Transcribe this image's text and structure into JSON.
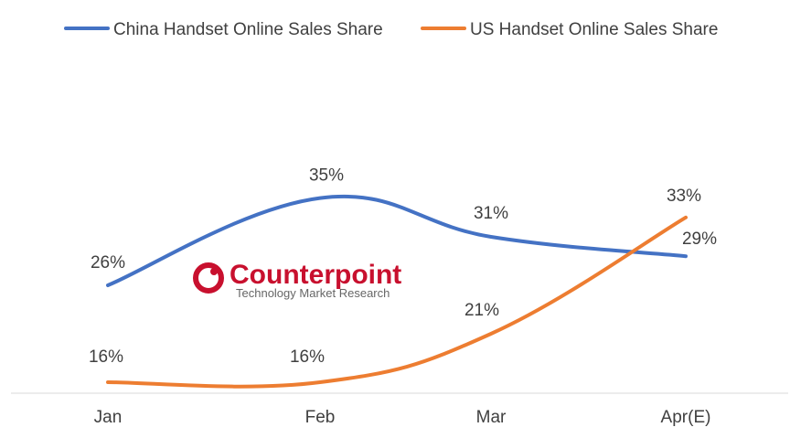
{
  "chart_data": {
    "type": "line",
    "categories": [
      "Jan",
      "Feb",
      "Mar",
      "Apr(E)"
    ],
    "series": [
      {
        "name": "China Handset Online Sales Share",
        "values": [
          26,
          35,
          31,
          29
        ],
        "labels": [
          "26%",
          "35%",
          "31%",
          "29%"
        ],
        "color": "#4472c4"
      },
      {
        "name": "US Handset Online Sales Share",
        "values": [
          16,
          16,
          21,
          33
        ],
        "labels": [
          "16%",
          "16%",
          "21%",
          "33%"
        ],
        "color": "#ed7d31"
      }
    ],
    "legend_position": "top",
    "grid": false
  },
  "watermark": {
    "name": "Counterpoint",
    "tagline": "Technology Market Research",
    "color": "#c8102e"
  }
}
